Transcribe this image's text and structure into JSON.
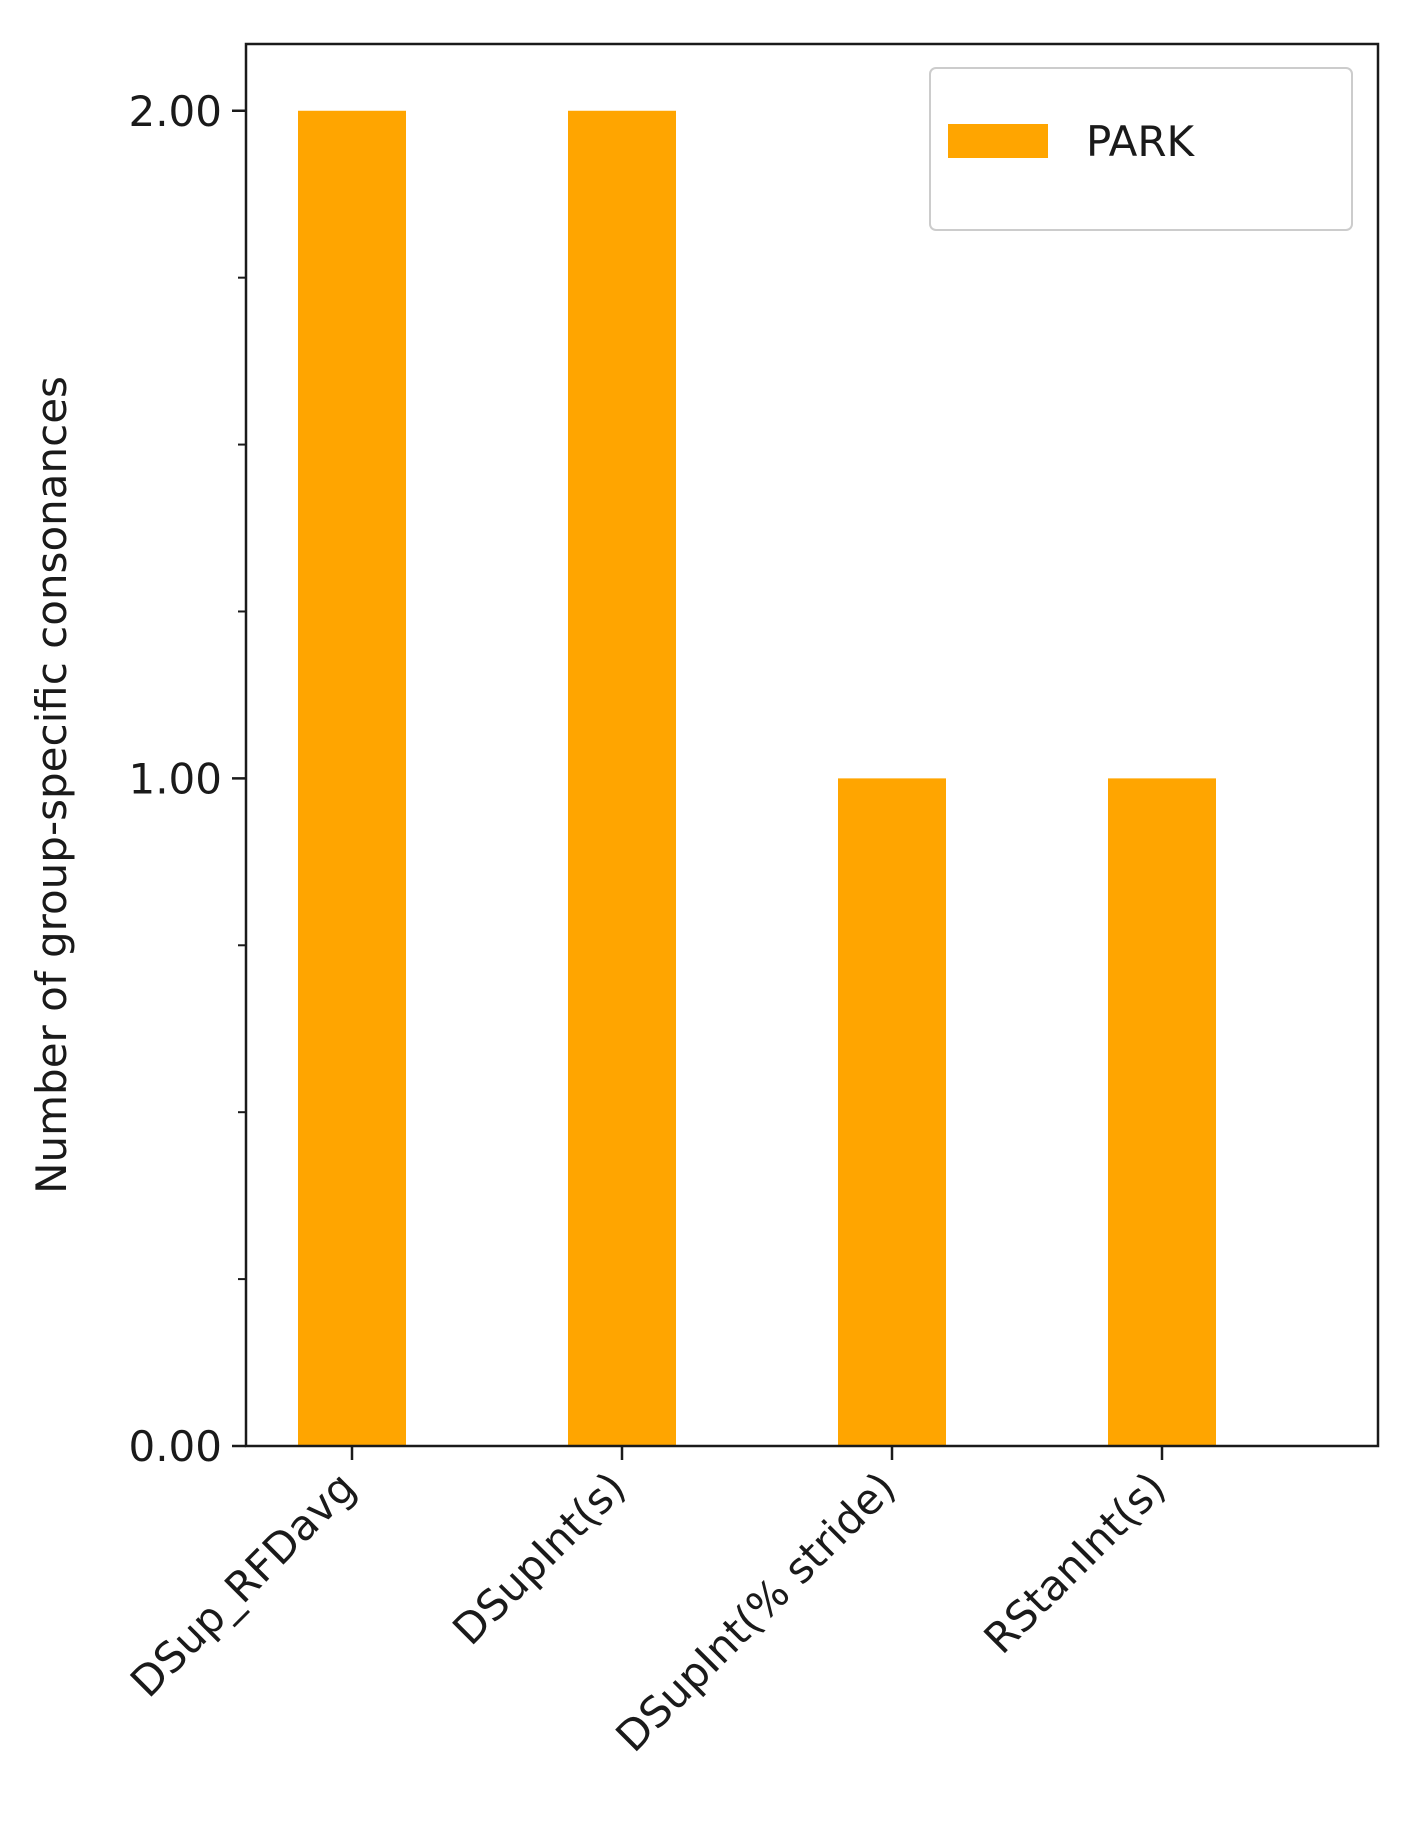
{
  "chart_data": {
    "type": "bar",
    "title": "",
    "xlabel": "",
    "ylabel": "Number of group-specific consonances",
    "categories": [
      "DSup_RFDavg",
      "DSupInt(s)",
      "DSupInt(% stride)",
      "RStanInt(s)"
    ],
    "series": [
      {
        "name": "PARK",
        "values": [
          2,
          2,
          1,
          1
        ],
        "color": "#FFA500"
      }
    ],
    "ylim": [
      0,
      2.1
    ],
    "yticks_major": [
      {
        "value": 0,
        "label": "0.00"
      },
      {
        "value": 1,
        "label": "1.00"
      },
      {
        "value": 2,
        "label": "2.00"
      }
    ],
    "yticks_minor": [
      0.25,
      0.5,
      0.75,
      1.25,
      1.5,
      1.75
    ],
    "grid": false,
    "legend_position": "top-right"
  }
}
